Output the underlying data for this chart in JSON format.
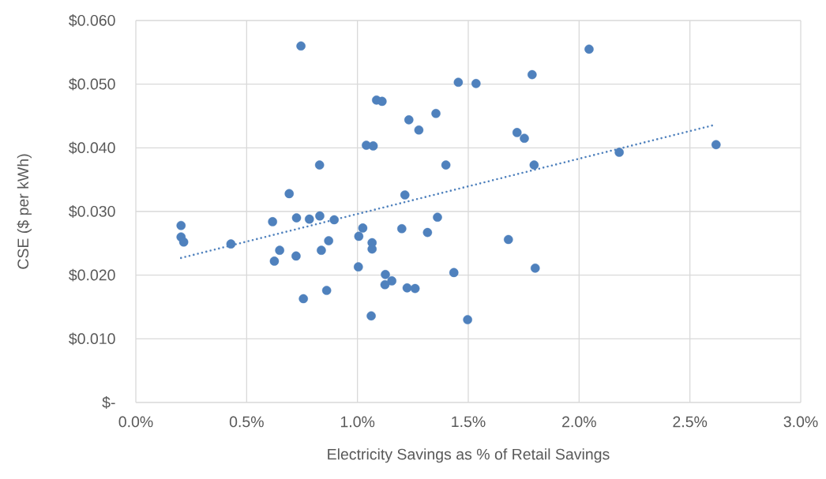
{
  "chart_data": {
    "type": "scatter",
    "xlabel": "Electricity Savings as % of Retail Savings",
    "ylabel": "CSE ($ per kWh)",
    "xlim": [
      0,
      3.0
    ],
    "ylim": [
      0,
      0.06
    ],
    "xticks": [
      {
        "value": 0,
        "label": "0.0%"
      },
      {
        "value": 0.5,
        "label": "0.5%"
      },
      {
        "value": 1.0,
        "label": "1.0%"
      },
      {
        "value": 1.5,
        "label": "1.5%"
      },
      {
        "value": 2.0,
        "label": "2.0%"
      },
      {
        "value": 2.5,
        "label": "2.5%"
      },
      {
        "value": 3.0,
        "label": "3.0%"
      }
    ],
    "yticks": [
      {
        "value": 0,
        "label": "$-"
      },
      {
        "value": 0.01,
        "label": "$0.010"
      },
      {
        "value": 0.02,
        "label": "$0.020"
      },
      {
        "value": 0.03,
        "label": "$0.030"
      },
      {
        "value": 0.04,
        "label": "$0.040"
      },
      {
        "value": 0.05,
        "label": "$0.050"
      },
      {
        "value": 0.06,
        "label": "$0.060"
      }
    ],
    "grid": true,
    "series": [
      {
        "marker": "circle",
        "color": "#4f81bd",
        "x": [
          0.745,
          0.204,
          0.204,
          0.216,
          0.429,
          0.617,
          0.649,
          0.625,
          0.692,
          0.725,
          0.723,
          0.783,
          0.83,
          0.829,
          0.756,
          0.837,
          0.87,
          0.895,
          0.861,
          1.004,
          1.006,
          1.024,
          1.04,
          1.071,
          1.066,
          1.066,
          1.062,
          1.086,
          1.111,
          1.126,
          1.155,
          1.124,
          1.2,
          1.214,
          1.232,
          1.277,
          1.224,
          1.26,
          1.316,
          1.354,
          1.361,
          1.399,
          1.435,
          1.455,
          1.497,
          1.535,
          1.788,
          2.045,
          1.72,
          1.753,
          1.797,
          2.181,
          2.618,
          1.681,
          1.802
        ],
        "values": [
          0.056,
          0.0278,
          0.026,
          0.0252,
          0.0249,
          0.0284,
          0.0239,
          0.0222,
          0.0328,
          0.029,
          0.023,
          0.0288,
          0.0293,
          0.0373,
          0.0163,
          0.0239,
          0.0254,
          0.0287,
          0.0176,
          0.0213,
          0.0261,
          0.0274,
          0.0404,
          0.0403,
          0.0251,
          0.0241,
          0.0136,
          0.0475,
          0.0473,
          0.0201,
          0.0191,
          0.0185,
          0.0273,
          0.0326,
          0.0444,
          0.0428,
          0.018,
          0.0179,
          0.0267,
          0.0454,
          0.0291,
          0.0373,
          0.0204,
          0.0503,
          0.013,
          0.0501,
          0.0515,
          0.0555,
          0.0424,
          0.0415,
          0.0373,
          0.0393,
          0.0405,
          0.0256,
          0.0211
        ]
      },
      {
        "type": "line",
        "marker": "none",
        "line_style": "dotted",
        "color": "#4f81bd",
        "x": [
          0.204,
          2.6
        ],
        "values": [
          0.0227,
          0.0435
        ]
      }
    ]
  }
}
